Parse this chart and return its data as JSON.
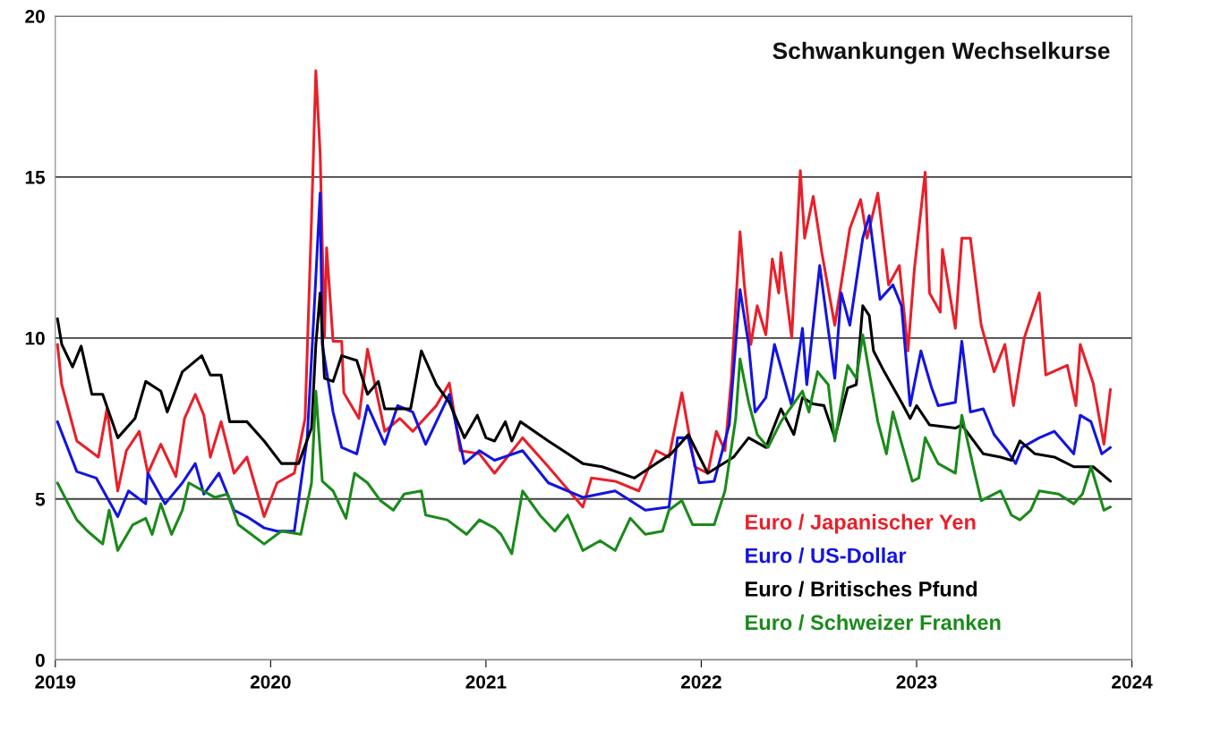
{
  "chart_data": {
    "type": "line",
    "title": "Schwankungen Wechselkurse",
    "xlim": [
      2019,
      2024
    ],
    "xticks": [
      2019,
      2020,
      2021,
      2022,
      2023,
      2024
    ],
    "ylim": [
      0,
      20
    ],
    "yticks": [
      0,
      5,
      10,
      15,
      20
    ],
    "grid": "y",
    "legend": "bottom right",
    "marker": "none",
    "line_style": "solid",
    "series": [
      {
        "name": "Euro / Japanischer Yen",
        "color": "#e8202a",
        "x": [
          2019.01,
          2019.03,
          2019.1,
          2019.2,
          2019.24,
          2019.29,
          2019.33,
          2019.39,
          2019.43,
          2019.49,
          2019.56,
          2019.6,
          2019.65,
          2019.69,
          2019.72,
          2019.77,
          2019.83,
          2019.89,
          2019.97,
          2020.03,
          2020.11,
          2020.16,
          2020.19,
          2020.21,
          2020.23,
          2020.25,
          2020.26,
          2020.29,
          2020.33,
          2020.34,
          2020.41,
          2020.45,
          2020.53,
          2020.6,
          2020.66,
          2020.77,
          2020.83,
          2020.88,
          2020.97,
          2021.04,
          2021.17,
          2021.29,
          2021.45,
          2021.49,
          2021.6,
          2021.71,
          2021.79,
          2021.85,
          2021.91,
          2021.97,
          2022.03,
          2022.07,
          2022.11,
          2022.14,
          2022.18,
          2022.2,
          2022.23,
          2022.26,
          2022.3,
          2022.33,
          2022.36,
          2022.37,
          2022.42,
          2022.46,
          2022.48,
          2022.52,
          2022.56,
          2022.62,
          2022.69,
          2022.74,
          2022.77,
          2022.82,
          2022.87,
          2022.92,
          2022.96,
          2022.99,
          2023.04,
          2023.06,
          2023.11,
          2023.12,
          2023.18,
          2023.21,
          2023.25,
          2023.3,
          2023.36,
          2023.41,
          2023.45,
          2023.5,
          2023.57,
          2023.6,
          2023.7,
          2023.74,
          2023.76,
          2023.82,
          2023.87,
          2023.9
        ],
        "values": [
          9.8,
          8.55,
          6.8,
          6.3,
          7.8,
          5.25,
          6.5,
          7.1,
          5.8,
          6.7,
          5.7,
          7.5,
          8.25,
          7.6,
          6.3,
          7.4,
          5.8,
          6.3,
          4.45,
          5.5,
          5.8,
          7.5,
          13.7,
          18.3,
          15.75,
          10.0,
          12.8,
          9.9,
          9.9,
          8.3,
          7.5,
          9.65,
          7.1,
          7.5,
          7.1,
          7.9,
          8.6,
          6.5,
          6.4,
          5.8,
          6.9,
          6.0,
          4.75,
          5.65,
          5.55,
          5.25,
          6.5,
          6.3,
          8.3,
          6.0,
          5.8,
          7.1,
          6.5,
          8.75,
          13.3,
          11.65,
          9.8,
          11.0,
          10.1,
          12.45,
          11.4,
          12.65,
          10.0,
          15.2,
          13.1,
          14.4,
          12.65,
          10.4,
          13.4,
          14.3,
          13.1,
          14.5,
          11.65,
          12.25,
          9.6,
          12.15,
          15.15,
          11.4,
          10.8,
          12.75,
          10.3,
          13.1,
          13.1,
          10.4,
          8.95,
          9.8,
          7.9,
          10.0,
          11.4,
          8.85,
          9.15,
          7.9,
          9.8,
          8.6,
          6.7,
          8.4
        ]
      },
      {
        "name": "Euro / US-Dollar",
        "color": "#1414e0",
        "x": [
          2019.01,
          2019.1,
          2019.19,
          2019.29,
          2019.34,
          2019.42,
          2019.43,
          2019.51,
          2019.59,
          2019.65,
          2019.69,
          2019.76,
          2019.83,
          2019.89,
          2019.97,
          2020.03,
          2020.11,
          2020.17,
          2020.2,
          2020.23,
          2020.24,
          2020.27,
          2020.29,
          2020.33,
          2020.4,
          2020.45,
          2020.53,
          2020.59,
          2020.66,
          2020.72,
          2020.83,
          2020.9,
          2020.97,
          2021.04,
          2021.17,
          2021.29,
          2021.45,
          2021.6,
          2021.74,
          2021.85,
          2021.89,
          2021.94,
          2021.99,
          2022.06,
          2022.13,
          2022.18,
          2022.22,
          2022.25,
          2022.3,
          2022.34,
          2022.42,
          2022.47,
          2022.49,
          2022.55,
          2022.62,
          2022.65,
          2022.69,
          2022.75,
          2022.78,
          2022.83,
          2022.89,
          2022.93,
          2022.97,
          2023.02,
          2023.07,
          2023.1,
          2023.18,
          2023.21,
          2023.25,
          2023.31,
          2023.36,
          2023.42,
          2023.46,
          2023.49,
          2023.57,
          2023.64,
          2023.73,
          2023.76,
          2023.81,
          2023.86,
          2023.9
        ],
        "values": [
          7.4,
          5.85,
          5.65,
          4.45,
          5.25,
          4.85,
          5.8,
          4.85,
          5.5,
          6.1,
          5.15,
          5.8,
          4.65,
          4.45,
          4.1,
          4.0,
          4.0,
          6.9,
          10.6,
          14.5,
          9.8,
          8.55,
          7.7,
          6.6,
          6.4,
          7.9,
          6.7,
          7.9,
          7.7,
          6.7,
          8.25,
          6.1,
          6.5,
          6.2,
          6.5,
          5.5,
          5.05,
          5.25,
          4.65,
          4.75,
          6.9,
          6.9,
          5.5,
          5.55,
          7.3,
          11.5,
          9.8,
          7.7,
          8.15,
          9.8,
          7.9,
          10.3,
          8.55,
          12.25,
          8.75,
          11.4,
          10.4,
          13.1,
          13.8,
          11.2,
          11.65,
          11.0,
          7.9,
          9.6,
          8.45,
          7.9,
          8.0,
          9.9,
          7.7,
          7.8,
          7.0,
          6.5,
          6.1,
          6.6,
          6.9,
          7.1,
          6.4,
          7.6,
          7.4,
          6.4,
          6.6
        ]
      },
      {
        "name": "Euro / Britisches Pfund",
        "color": "#000000",
        "x": [
          2019.01,
          2019.03,
          2019.08,
          2019.12,
          2019.17,
          2019.22,
          2019.29,
          2019.37,
          2019.42,
          2019.49,
          2019.52,
          2019.59,
          2019.68,
          2019.72,
          2019.77,
          2019.81,
          2019.89,
          2019.97,
          2020.05,
          2020.13,
          2020.19,
          2020.21,
          2020.23,
          2020.25,
          2020.29,
          2020.33,
          2020.4,
          2020.45,
          2020.5,
          2020.53,
          2020.65,
          2020.7,
          2020.77,
          2020.83,
          2020.9,
          2020.96,
          2021.0,
          2021.04,
          2021.09,
          2021.12,
          2021.16,
          2021.29,
          2021.45,
          2021.54,
          2021.69,
          2021.79,
          2021.86,
          2021.94,
          2022.03,
          2022.15,
          2022.22,
          2022.3,
          2022.37,
          2022.43,
          2022.47,
          2022.52,
          2022.57,
          2022.62,
          2022.68,
          2022.72,
          2022.75,
          2022.78,
          2022.8,
          2022.85,
          2022.93,
          2022.97,
          2023.0,
          2023.06,
          2023.18,
          2023.21,
          2023.31,
          2023.39,
          2023.44,
          2023.48,
          2023.55,
          2023.64,
          2023.73,
          2023.82,
          2023.9
        ],
        "values": [
          10.6,
          9.8,
          9.1,
          9.75,
          8.25,
          8.25,
          6.9,
          7.5,
          8.65,
          8.35,
          7.7,
          8.95,
          9.45,
          8.85,
          8.85,
          7.4,
          7.4,
          6.8,
          6.1,
          6.1,
          7.2,
          9.8,
          11.4,
          8.75,
          8.65,
          9.45,
          9.3,
          8.25,
          8.65,
          7.8,
          7.8,
          9.6,
          8.55,
          8.0,
          6.9,
          7.6,
          6.9,
          6.8,
          7.4,
          6.8,
          7.4,
          6.8,
          6.1,
          6.0,
          5.65,
          6.1,
          6.4,
          7.0,
          5.8,
          6.3,
          6.9,
          6.6,
          7.8,
          7.0,
          8.15,
          7.95,
          7.9,
          6.9,
          8.45,
          8.55,
          11.0,
          10.7,
          9.6,
          8.95,
          8.0,
          7.5,
          7.9,
          7.3,
          7.2,
          7.3,
          6.4,
          6.3,
          6.2,
          6.8,
          6.4,
          6.3,
          6.0,
          6.0,
          5.55
        ]
      },
      {
        "name": "Euro / Schweizer Franken",
        "color": "#1a8a1a",
        "x": [
          2019.01,
          2019.06,
          2019.1,
          2019.15,
          2019.22,
          2019.25,
          2019.29,
          2019.36,
          2019.42,
          2019.45,
          2019.49,
          2019.54,
          2019.59,
          2019.62,
          2019.74,
          2019.8,
          2019.85,
          2019.91,
          2019.97,
          2020.05,
          2020.14,
          2020.19,
          2020.21,
          2020.24,
          2020.29,
          2020.35,
          2020.39,
          2020.45,
          2020.51,
          2020.57,
          2020.62,
          2020.7,
          2020.72,
          2020.82,
          2020.91,
          2020.97,
          2021.04,
          2021.07,
          2021.12,
          2021.17,
          2021.25,
          2021.32,
          2021.38,
          2021.45,
          2021.53,
          2021.6,
          2021.67,
          2021.74,
          2021.82,
          2021.85,
          2021.91,
          2021.96,
          2022.06,
          2022.11,
          2022.16,
          2022.18,
          2022.22,
          2022.26,
          2022.31,
          2022.37,
          2022.47,
          2022.5,
          2022.54,
          2022.59,
          2022.62,
          2022.68,
          2022.72,
          2022.75,
          2022.82,
          2022.86,
          2022.89,
          2022.94,
          2022.98,
          2023.01,
          2023.04,
          2023.1,
          2023.18,
          2023.21,
          2023.27,
          2023.3,
          2023.39,
          2023.44,
          2023.48,
          2023.53,
          2023.57,
          2023.66,
          2023.73,
          2023.77,
          2023.81,
          2023.87,
          2023.9
        ],
        "values": [
          5.5,
          4.85,
          4.35,
          4.0,
          3.6,
          4.65,
          3.4,
          4.2,
          4.4,
          3.9,
          4.85,
          3.9,
          4.65,
          5.5,
          5.05,
          5.15,
          4.2,
          3.9,
          3.6,
          4.0,
          3.9,
          5.5,
          8.35,
          5.55,
          5.25,
          4.4,
          5.8,
          5.5,
          4.95,
          4.65,
          5.15,
          5.25,
          4.5,
          4.35,
          3.9,
          4.35,
          4.1,
          3.9,
          3.3,
          5.25,
          4.5,
          4.0,
          4.5,
          3.4,
          3.7,
          3.4,
          4.4,
          3.9,
          4.0,
          4.65,
          4.95,
          4.2,
          4.2,
          5.25,
          7.5,
          9.35,
          8.0,
          7.0,
          6.6,
          7.4,
          8.35,
          7.7,
          8.95,
          8.55,
          6.8,
          9.15,
          8.75,
          10.1,
          7.4,
          6.4,
          7.7,
          6.5,
          5.55,
          5.65,
          6.9,
          6.1,
          5.8,
          7.6,
          5.8,
          4.95,
          5.25,
          4.5,
          4.35,
          4.65,
          5.25,
          5.15,
          4.85,
          5.15,
          6.0,
          4.65,
          4.75
        ]
      }
    ]
  }
}
